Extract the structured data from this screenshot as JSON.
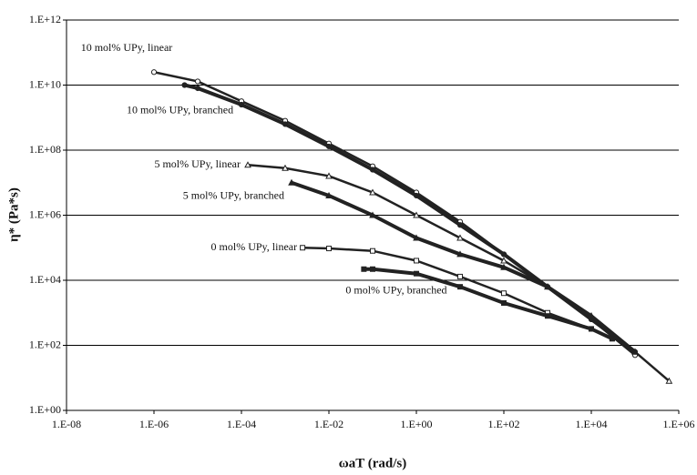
{
  "chart_data": {
    "type": "scatter",
    "x_label": "ωaT (rad/s)",
    "y_label": "η* (Pa*s)",
    "xlog": true,
    "ylog": true,
    "grid": "y",
    "xlim": [
      1e-08,
      1000000.0
    ],
    "ylim": [
      1,
      1000000000000.0
    ],
    "xticks": [
      {
        "value": 1e-08,
        "label": "1.E-08"
      },
      {
        "value": 1e-06,
        "label": "1.E-06"
      },
      {
        "value": 0.0001,
        "label": "1.E-04"
      },
      {
        "value": 0.01,
        "label": "1.E-02"
      },
      {
        "value": 1,
        "label": "1.E+00"
      },
      {
        "value": 100.0,
        "label": "1.E+02"
      },
      {
        "value": 10000.0,
        "label": "1.E+04"
      },
      {
        "value": 1000000.0,
        "label": "1.E+06"
      }
    ],
    "yticks": [
      {
        "value": 1,
        "label": "1.E+00"
      },
      {
        "value": 100.0,
        "label": "1.E+02"
      },
      {
        "value": 10000.0,
        "label": "1.E+04"
      },
      {
        "value": 1000000.0,
        "label": "1.E+06"
      },
      {
        "value": 100000000.0,
        "label": "1.E+08"
      },
      {
        "value": 10000000000.0,
        "label": "1.E+10"
      },
      {
        "value": 1000000000000.0,
        "label": "1.E+12"
      }
    ],
    "series": [
      {
        "name": "10 mol% UPy, linear",
        "color": "#222",
        "marker": "circle",
        "filled": false,
        "x": [
          1e-06,
          1e-05,
          0.0001,
          0.001,
          0.01,
          0.1,
          1,
          10,
          100,
          1000,
          10000,
          100000
        ],
        "values": [
          25000000000.0,
          13000000000.0,
          3200000000.0,
          800000000.0,
          160000000.0,
          32000000.0,
          5000000.0,
          630000.0,
          63000.0,
          6300,
          630,
          50
        ]
      },
      {
        "name": "10 mol% UPy, branched",
        "color": "#222",
        "marker": "circle",
        "filled": true,
        "x": [
          5e-06,
          1e-05,
          0.0001,
          0.001,
          0.01,
          0.1,
          1,
          10,
          100,
          1000,
          10000,
          100000
        ],
        "values": [
          10000000000.0,
          8000000000.0,
          2500000000.0,
          630000000.0,
          130000000.0,
          25000000.0,
          4000000.0,
          500000.0,
          63000.0,
          6300,
          630,
          63
        ]
      },
      {
        "name": "5 mol% UPy, linear",
        "color": "#222",
        "marker": "triangle",
        "filled": false,
        "x": [
          0.00014,
          0.001,
          0.01,
          0.1,
          1,
          10,
          100,
          1000,
          10000,
          100000,
          600000
        ],
        "values": [
          35000000.0,
          28000000.0,
          16000000.0,
          5000000.0,
          1000000.0,
          200000.0,
          40000.0,
          6300,
          800,
          63,
          8
        ]
      },
      {
        "name": "5 mol% UPy, branched",
        "color": "#222",
        "marker": "triangle",
        "filled": true,
        "x": [
          0.0014,
          0.01,
          0.1,
          1,
          10,
          100,
          1000,
          10000,
          100000
        ],
        "values": [
          10000000.0,
          4000000.0,
          1000000.0,
          200000.0,
          63000.0,
          25000.0,
          6300,
          800,
          63
        ]
      },
      {
        "name": "0 mol% UPy, linear",
        "color": "#222",
        "marker": "square",
        "filled": false,
        "x": [
          0.0025,
          0.01,
          0.1,
          1,
          10,
          100,
          1000,
          10000,
          30000
        ],
        "values": [
          100000.0,
          95000.0,
          80000.0,
          40000.0,
          13000.0,
          4000,
          1000,
          320,
          160
        ]
      },
      {
        "name": "0 mol% UPy, branched",
        "color": "#222",
        "marker": "square",
        "filled": true,
        "x": [
          0.063,
          0.1,
          1,
          10,
          100,
          1000,
          10000,
          30000
        ],
        "values": [
          22000.0,
          22000.0,
          16000.0,
          6300,
          2000,
          800,
          320,
          160
        ]
      }
    ]
  }
}
